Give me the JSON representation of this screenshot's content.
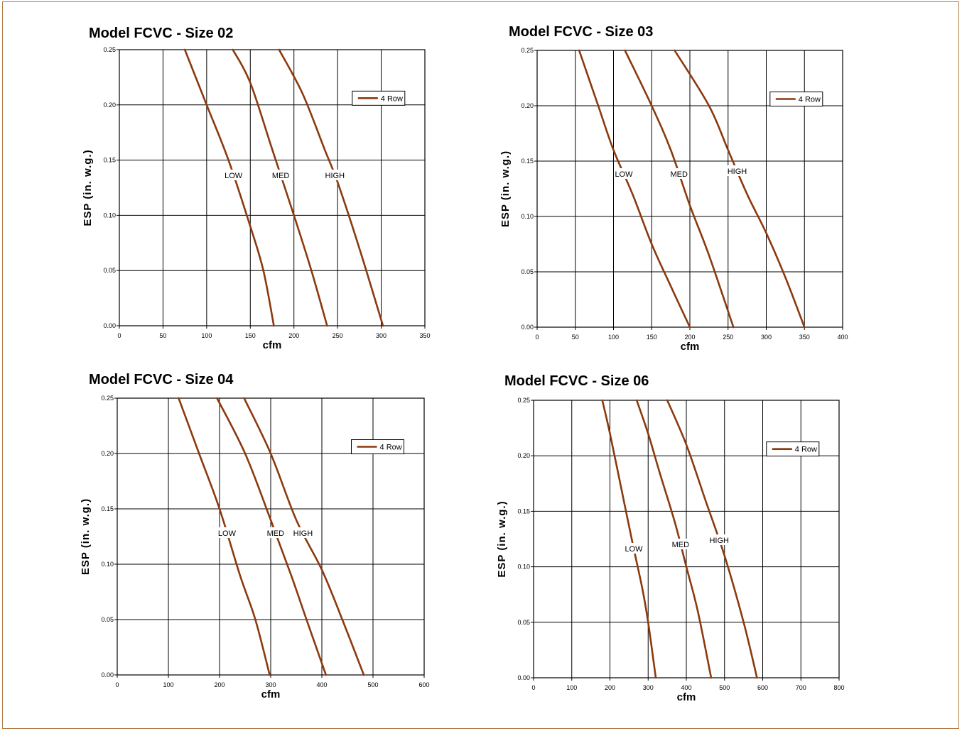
{
  "colors": {
    "curve": "#8b3a0f",
    "grid": "#000000",
    "frame_border": "#b07a45",
    "background": "#ffffff"
  },
  "chart_data": [
    {
      "type": "line",
      "title": "Model FCVC - Size 02",
      "xlabel": "cfm",
      "ylabel": "ESP (in. w.g.)",
      "xlim": [
        0,
        350
      ],
      "ylim": [
        0,
        0.25
      ],
      "xticks": [
        "0",
        "50",
        "100",
        "150",
        "200",
        "250",
        "300",
        "350"
      ],
      "yticks": [
        "0.00",
        "0.05",
        "0.10",
        "0.15",
        "0.20",
        "0.25"
      ],
      "grid": true,
      "legend": {
        "label": "4 Row",
        "position": "top-right"
      },
      "series": [
        {
          "label": "LOW",
          "x": [
            75,
            100,
            125,
            150,
            165,
            177
          ],
          "y": [
            0.25,
            0.2,
            0.15,
            0.09,
            0.05,
            0.0
          ]
        },
        {
          "label": "MED",
          "x": [
            130,
            150,
            175,
            200,
            220,
            238
          ],
          "y": [
            0.25,
            0.22,
            0.16,
            0.1,
            0.05,
            0.0
          ]
        },
        {
          "label": "HIGH",
          "x": [
            183,
            210,
            235,
            250,
            275,
            302
          ],
          "y": [
            0.25,
            0.21,
            0.16,
            0.13,
            0.07,
            0.0
          ]
        }
      ]
    },
    {
      "type": "line",
      "title": "Model FCVC - Size 03",
      "xlabel": "cfm",
      "ylabel": "ESP (in. w.g.)",
      "xlim": [
        0,
        400
      ],
      "ylim": [
        0,
        0.25
      ],
      "xticks": [
        "0",
        "50",
        "100",
        "150",
        "200",
        "250",
        "300",
        "350",
        "400"
      ],
      "yticks": [
        "0.00",
        "0.05",
        "0.10",
        "0.15",
        "0.20",
        "0.25"
      ],
      "grid": true,
      "legend": {
        "label": "4 Row",
        "position": "top-right"
      },
      "series": [
        {
          "label": "LOW",
          "x": [
            55,
            80,
            100,
            125,
            150,
            175,
            200
          ],
          "y": [
            0.25,
            0.2,
            0.16,
            0.12,
            0.075,
            0.037,
            0.0
          ]
        },
        {
          "label": "MED",
          "x": [
            115,
            150,
            175,
            200,
            225,
            257
          ],
          "y": [
            0.25,
            0.2,
            0.16,
            0.11,
            0.065,
            0.0
          ]
        },
        {
          "label": "HIGH",
          "x": [
            180,
            225,
            250,
            275,
            300,
            325,
            350
          ],
          "y": [
            0.25,
            0.2,
            0.16,
            0.12,
            0.085,
            0.045,
            0.0
          ]
        }
      ]
    },
    {
      "type": "line",
      "title": "Model FCVC - Size 04",
      "xlabel": "cfm",
      "ylabel": "ESP (in. w.g.)",
      "xlim": [
        0,
        600
      ],
      "ylim": [
        0,
        0.25
      ],
      "xticks": [
        "0",
        "100",
        "200",
        "300",
        "400",
        "500",
        "600"
      ],
      "yticks": [
        "0.00",
        "0.05",
        "0.10",
        "0.15",
        "0.20",
        "0.25"
      ],
      "grid": true,
      "legend": {
        "label": "4 Row",
        "position": "top-right"
      },
      "series": [
        {
          "label": "LOW",
          "x": [
            120,
            160,
            200,
            240,
            270,
            298
          ],
          "y": [
            0.25,
            0.2,
            0.15,
            0.09,
            0.05,
            0.0
          ]
        },
        {
          "label": "MED",
          "x": [
            195,
            250,
            300,
            340,
            370,
            408
          ],
          "y": [
            0.25,
            0.2,
            0.14,
            0.09,
            0.05,
            0.0
          ]
        },
        {
          "label": "HIGH",
          "x": [
            248,
            300,
            350,
            400,
            440,
            482
          ],
          "y": [
            0.25,
            0.2,
            0.14,
            0.095,
            0.05,
            0.0
          ]
        }
      ]
    },
    {
      "type": "line",
      "title": "Model FCVC - Size 06",
      "xlabel": "cfm",
      "ylabel": "ESP (in. w.g.)",
      "xlim": [
        0,
        800
      ],
      "ylim": [
        0,
        0.25
      ],
      "xticks": [
        "0",
        "100",
        "200",
        "300",
        "400",
        "500",
        "600",
        "700",
        "800"
      ],
      "yticks": [
        "0.00",
        "0.05",
        "0.10",
        "0.15",
        "0.20",
        "0.25"
      ],
      "grid": true,
      "legend": {
        "label": "4 Row",
        "position": "top-right"
      },
      "series": [
        {
          "label": "LOW",
          "x": [
            180,
            200,
            230,
            260,
            285,
            300,
            320
          ],
          "y": [
            0.25,
            0.22,
            0.17,
            0.12,
            0.08,
            0.05,
            0.0
          ]
        },
        {
          "label": "MED",
          "x": [
            270,
            300,
            330,
            370,
            400,
            430,
            465
          ],
          "y": [
            0.25,
            0.22,
            0.185,
            0.14,
            0.1,
            0.06,
            0.0
          ]
        },
        {
          "label": "HIGH",
          "x": [
            350,
            400,
            450,
            500,
            550,
            585
          ],
          "y": [
            0.25,
            0.21,
            0.16,
            0.11,
            0.05,
            0.0
          ]
        }
      ]
    }
  ]
}
